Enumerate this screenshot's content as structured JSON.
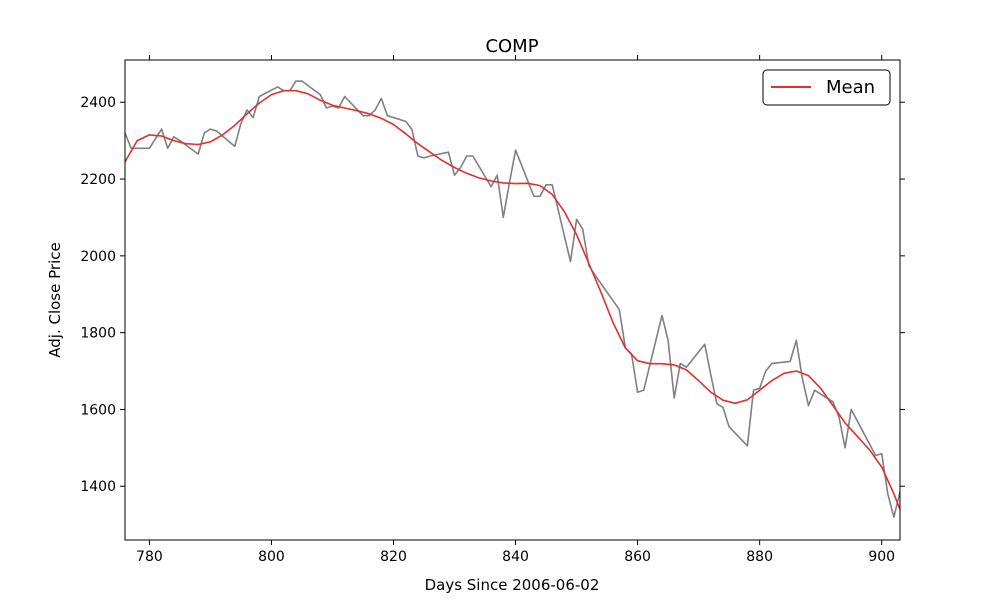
{
  "chart_data": {
    "type": "line",
    "title": "COMP",
    "xlabel": "Days Since 2006-06-02",
    "ylabel": "Adj. Close Price",
    "xlim": [
      776,
      903
    ],
    "ylim": [
      1260,
      2510
    ],
    "x_ticks": [
      780,
      800,
      820,
      840,
      860,
      880,
      900
    ],
    "y_ticks": [
      1400,
      1600,
      1800,
      2000,
      2200,
      2400
    ],
    "grid": false,
    "legend": {
      "position": "top-right",
      "entries": [
        "Mean"
      ]
    },
    "series": [
      {
        "color": "#808080",
        "x": [
          776,
          777,
          780,
          782,
          783,
          784,
          785,
          788,
          789,
          790,
          791,
          794,
          795,
          796,
          797,
          798,
          801,
          802,
          803,
          804,
          805,
          808,
          809,
          810,
          811,
          812,
          815,
          816,
          817,
          818,
          819,
          822,
          823,
          824,
          825,
          826,
          829,
          830,
          831,
          832,
          833,
          836,
          837,
          838,
          839,
          840,
          843,
          844,
          845,
          846,
          849,
          850,
          851,
          852,
          853,
          857,
          858,
          859,
          860,
          861,
          864,
          865,
          866,
          867,
          868,
          871,
          872,
          873,
          874,
          875,
          878,
          879,
          880,
          881,
          882,
          885,
          886,
          887,
          888,
          889,
          892,
          893,
          894,
          895,
          899,
          900,
          901,
          902,
          903
        ],
        "y": [
          2320,
          2280,
          2280,
          2330,
          2280,
          2310,
          2300,
          2265,
          2320,
          2330,
          2325,
          2285,
          2345,
          2380,
          2360,
          2415,
          2440,
          2430,
          2430,
          2455,
          2455,
          2420,
          2385,
          2390,
          2385,
          2415,
          2365,
          2365,
          2380,
          2410,
          2365,
          2350,
          2330,
          2260,
          2255,
          2260,
          2270,
          2210,
          2230,
          2260,
          2260,
          2180,
          2210,
          2100,
          2190,
          2275,
          2155,
          2155,
          2185,
          2185,
          1985,
          2095,
          2070,
          1975,
          1950,
          1860,
          1760,
          1745,
          1645,
          1650,
          1845,
          1780,
          1630,
          1720,
          1710,
          1770,
          1690,
          1615,
          1605,
          1555,
          1505,
          1650,
          1655,
          1700,
          1720,
          1725,
          1780,
          1680,
          1610,
          1650,
          1620,
          1580,
          1500,
          1600,
          1480,
          1485,
          1380,
          1320,
          1385
        ]
      },
      {
        "name": "Mean",
        "color": "#e03030",
        "x": [
          776,
          778,
          780,
          782,
          784,
          786,
          788,
          790,
          792,
          794,
          796,
          798,
          800,
          802,
          804,
          806,
          808,
          810,
          812,
          814,
          816,
          818,
          820,
          822,
          824,
          826,
          828,
          830,
          832,
          834,
          836,
          838,
          840,
          842,
          844,
          846,
          848,
          850,
          852,
          854,
          856,
          858,
          860,
          862,
          864,
          866,
          868,
          870,
          872,
          874,
          876,
          878,
          880,
          882,
          884,
          886,
          888,
          890,
          892,
          894,
          896,
          898,
          900,
          902,
          903
        ],
        "y": [
          2245,
          2300,
          2315,
          2312,
          2300,
          2292,
          2290,
          2297,
          2315,
          2340,
          2370,
          2398,
          2420,
          2430,
          2430,
          2422,
          2405,
          2392,
          2385,
          2378,
          2370,
          2358,
          2342,
          2318,
          2292,
          2270,
          2248,
          2230,
          2215,
          2203,
          2195,
          2190,
          2188,
          2189,
          2183,
          2160,
          2115,
          2055,
          1980,
          1905,
          1825,
          1760,
          1727,
          1719,
          1719,
          1716,
          1703,
          1675,
          1645,
          1624,
          1616,
          1625,
          1650,
          1675,
          1694,
          1700,
          1688,
          1655,
          1610,
          1565,
          1530,
          1495,
          1450,
          1380,
          1340
        ]
      }
    ]
  }
}
